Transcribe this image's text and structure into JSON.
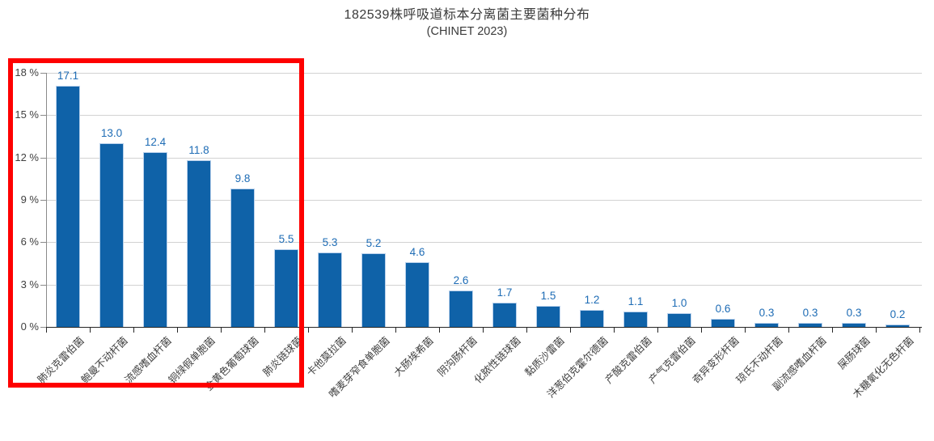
{
  "chart_data": {
    "type": "bar",
    "title": "182539株呼吸道标本分离菌主要菌种分布",
    "subtitle": "(CHINET 2023)",
    "xlabel": "",
    "ylabel": "",
    "ylim": [
      0,
      18
    ],
    "grid": true,
    "legend": "none",
    "y_tick_labels": [
      "0 %",
      "3 %",
      "6 %",
      "9 %",
      "12 %",
      "15 %",
      "18 %"
    ],
    "y_tick_values": [
      0,
      3,
      6,
      9,
      12,
      15,
      18
    ],
    "categories": [
      "肺炎克雷伯菌",
      "鲍曼不动杆菌",
      "流感嗜血杆菌",
      "铜绿假单胞菌",
      "金黄色葡萄球菌",
      "肺炎链球菌",
      "卡他莫拉菌",
      "嗜麦芽窄食单胞菌",
      "大肠埃希菌",
      "阴沟肠杆菌",
      "化脓性链球菌",
      "黏质沙雷菌",
      "洋葱伯克霍尔德菌",
      "产酸克雷伯菌",
      "产气克雷伯菌",
      "奇异变形杆菌",
      "琼氏不动杆菌",
      "副流感嗜血杆菌",
      "屎肠球菌",
      "木糖氧化无色杆菌"
    ],
    "values": [
      17.1,
      13.0,
      12.4,
      11.8,
      9.8,
      5.5,
      5.3,
      5.2,
      4.6,
      2.6,
      1.7,
      1.5,
      1.2,
      1.1,
      1.0,
      0.6,
      0.3,
      0.3,
      0.3,
      0.2
    ],
    "value_labels": [
      "17.1",
      "13.0",
      "12.4",
      "11.8",
      "9.8",
      "5.5",
      "5.3",
      "5.2",
      "4.6",
      "2.6",
      "1.7",
      "1.5",
      "1.2",
      "1.1",
      "1.0",
      "0.6",
      "0.3",
      "0.3",
      "0.3",
      "0.2"
    ],
    "colors": {
      "bar_fill": "#0f62a8",
      "bar_border": "#b9d1ec",
      "value_label": "#1e6cb5",
      "grid_line": "#d2d2d2",
      "axis_line": "#262626",
      "tick_label": "#404040",
      "title_text": "#3a3a3a"
    },
    "annotation": {
      "type": "highlight-rectangle",
      "color": "#fe0000",
      "covers_categories_from_index": 0,
      "covers_categories_to_index": 5
    }
  }
}
